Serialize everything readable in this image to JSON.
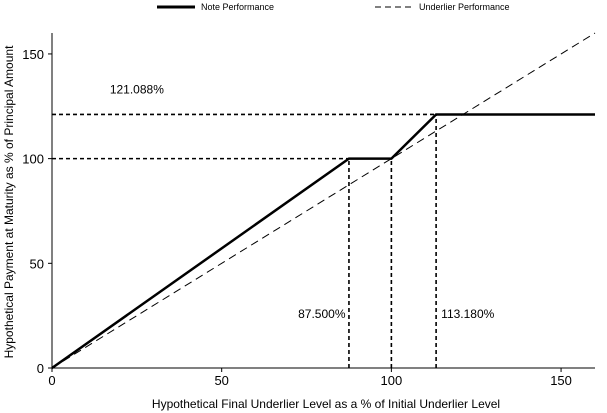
{
  "chart_data": {
    "type": "line",
    "xlabel": "Hypothetical Final Underlier Level as a % of Initial Underlier Level",
    "ylabel": "Hypothetical Payment at Maturity as % of Principal Amount",
    "xlim": [
      0,
      160
    ],
    "ylim": [
      0,
      160
    ],
    "x_ticks": [
      0,
      50,
      100,
      150
    ],
    "y_ticks": [
      0,
      50,
      100,
      150
    ],
    "grid": false,
    "legend_position": "top",
    "series": [
      {
        "name": "Note Performance",
        "style": "solid",
        "x": [
          0,
          87.5,
          100,
          113.18,
          160
        ],
        "y": [
          0,
          100,
          100,
          121.088,
          121.088
        ]
      },
      {
        "name": "Underlier Performance",
        "style": "dashed",
        "x": [
          0,
          160
        ],
        "y": [
          0,
          160
        ]
      }
    ],
    "reference_lines": [
      {
        "x": [
          0,
          87.5
        ],
        "y": [
          100,
          100
        ]
      },
      {
        "x": [
          0,
          113.18
        ],
        "y": [
          121.088,
          121.088
        ]
      },
      {
        "x": [
          87.5,
          87.5
        ],
        "y": [
          0,
          100
        ]
      },
      {
        "x": [
          100,
          100
        ],
        "y": [
          0,
          100
        ]
      },
      {
        "x": [
          113.18,
          113.18
        ],
        "y": [
          0,
          121.088
        ]
      }
    ],
    "annotations": [
      {
        "text": "121.088%",
        "x": 25,
        "y": 131
      },
      {
        "text": "87.500%",
        "x": 79.5,
        "y": 24
      },
      {
        "text": "113.180%",
        "x": 122.5,
        "y": 24
      }
    ]
  }
}
